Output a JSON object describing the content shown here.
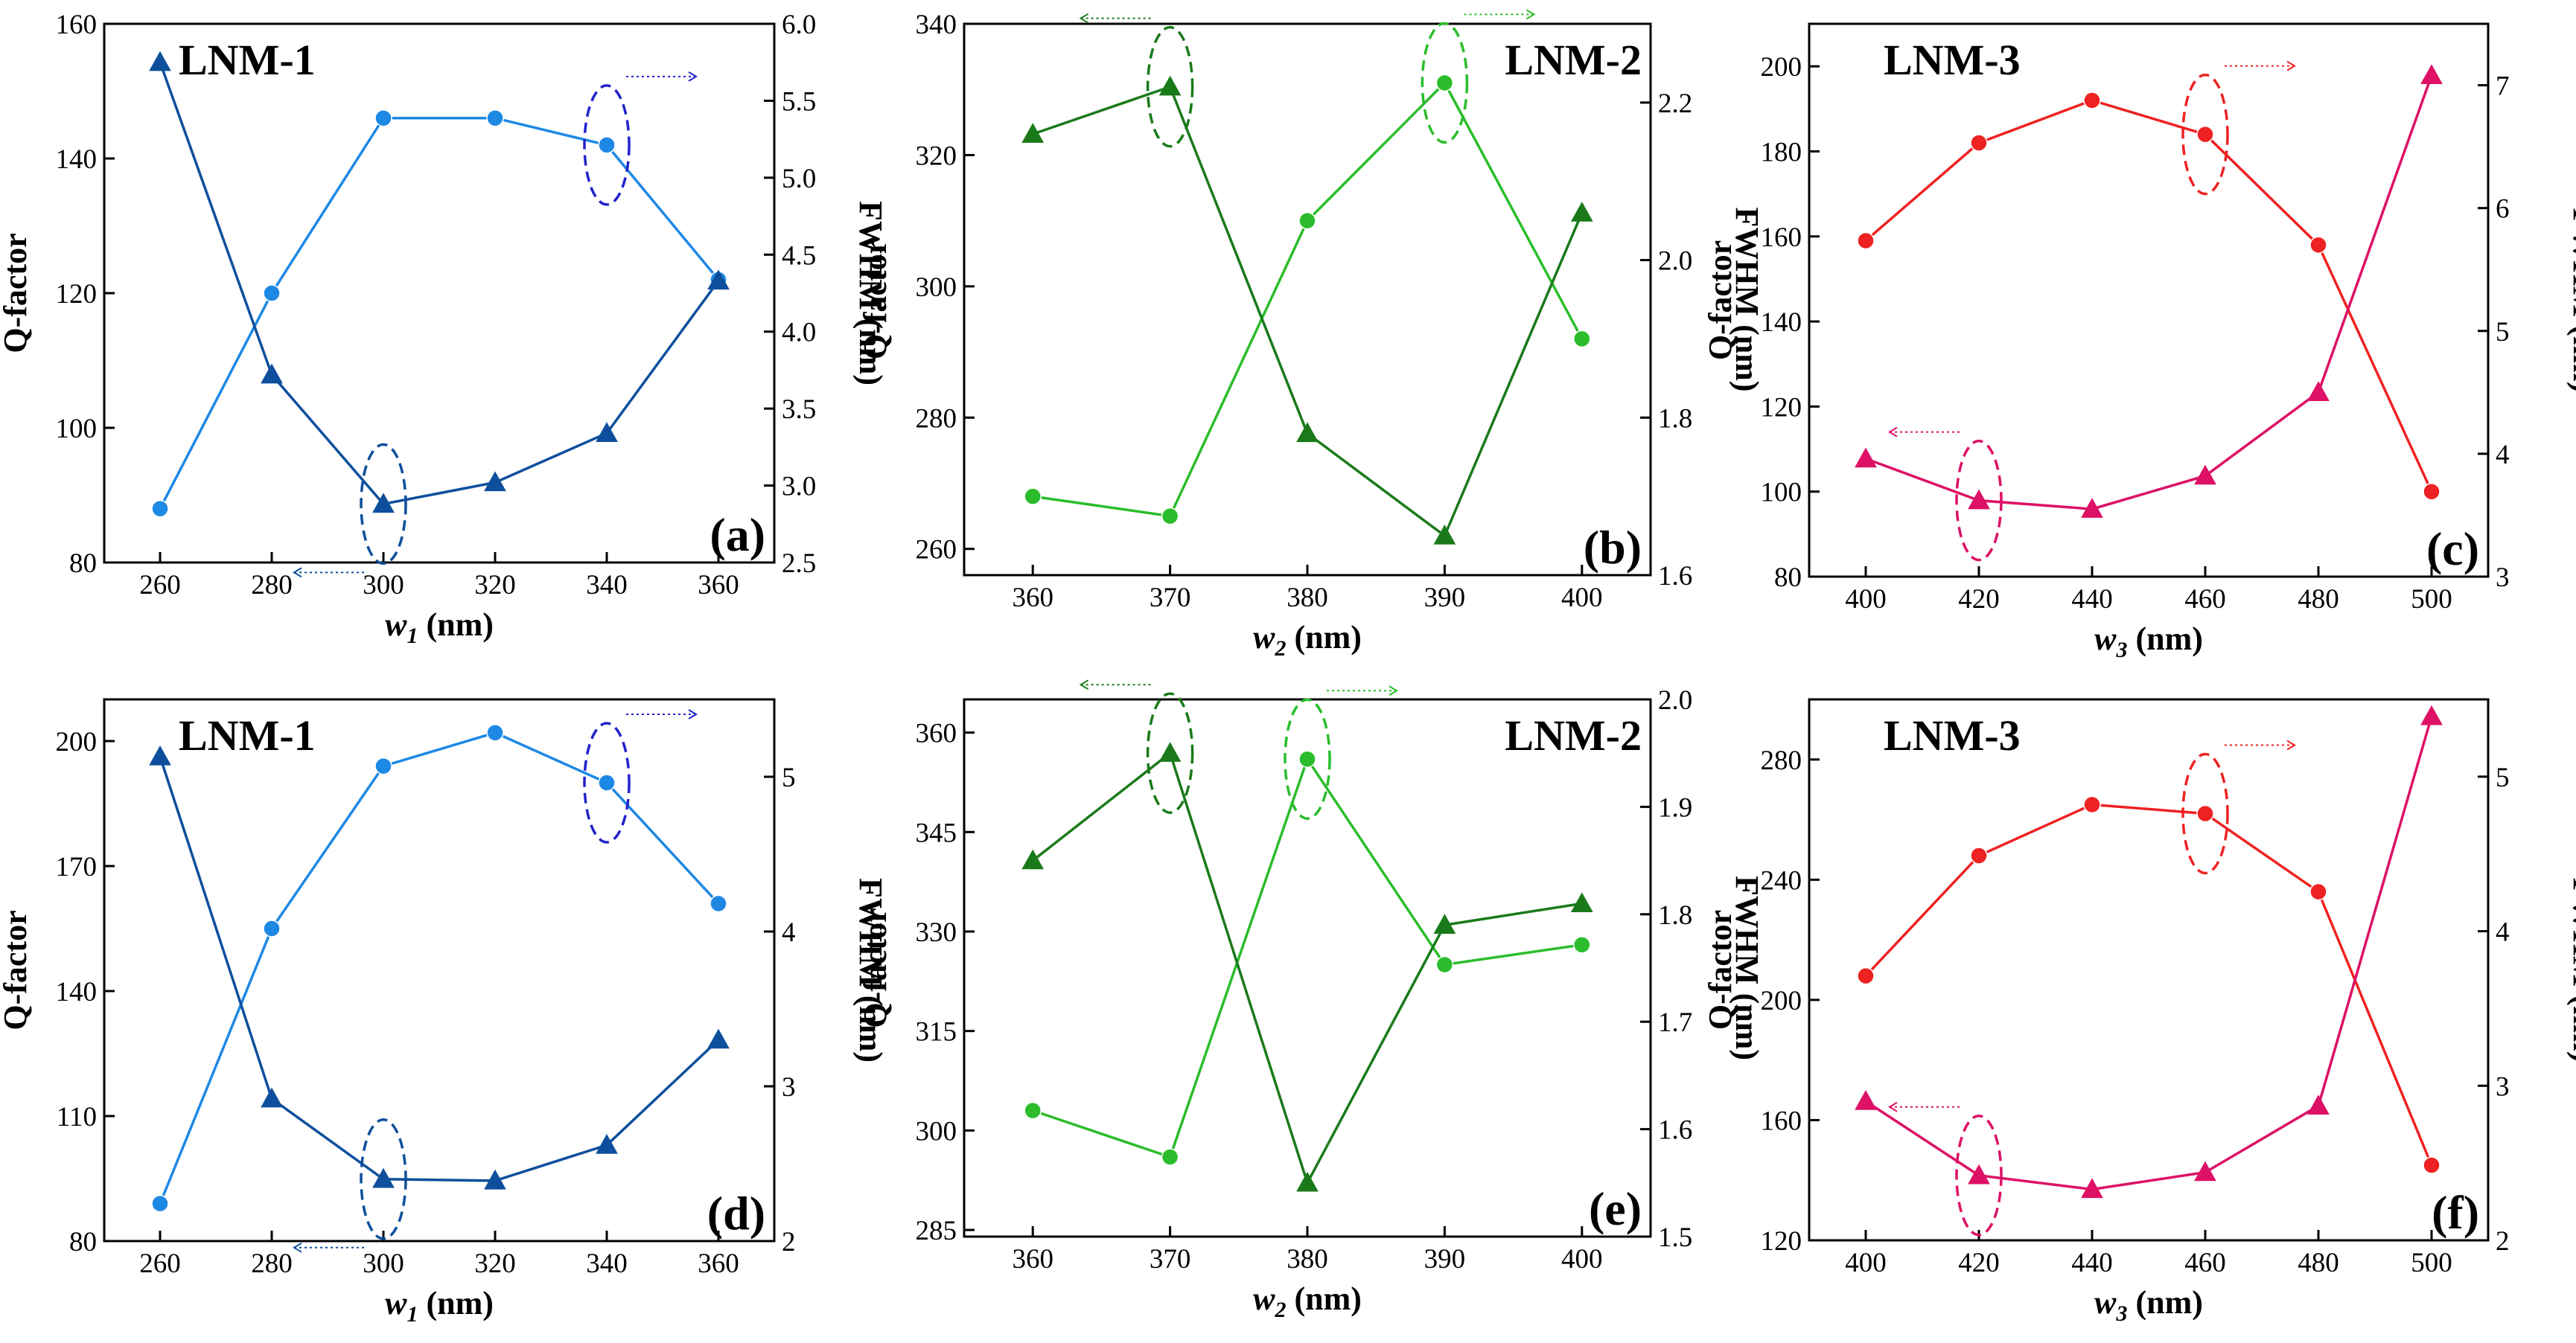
{
  "colors": {
    "blue_q": "#1e88e5",
    "blue_f": "#0d4f9c",
    "green_q": "#2bbd2b",
    "green_f": "#1a7a1a",
    "red_q": "#ee2222",
    "red_f": "#dd1166"
  },
  "chart_data": [
    {
      "type": "line",
      "panel": "(a)",
      "title": "LNM-1",
      "xlabel_var": "w",
      "xlabel_sub": "1",
      "xlabel_unit": " (nm)",
      "ylabel": "Q-factor",
      "y2label": "FWHM (nm)",
      "x": [
        260,
        280,
        300,
        320,
        340,
        360
      ],
      "xlim": [
        250,
        370
      ],
      "ylim": [
        80,
        160
      ],
      "y2lim": [
        2.5,
        6.0
      ],
      "xticks": [
        260,
        280,
        300,
        320,
        340,
        360
      ],
      "yticks": [
        80,
        100,
        120,
        140,
        160
      ],
      "y2ticks": [
        2.5,
        3.0,
        3.5,
        4.0,
        4.5,
        5.0,
        5.5,
        6.0
      ],
      "tick_dec2": 1,
      "color_q": "blue_q",
      "color_f": "blue_f",
      "series": [
        {
          "name": "Q-factor",
          "axis": "left",
          "marker": "circle",
          "values": [
            88,
            120,
            146,
            146,
            142,
            122
          ]
        },
        {
          "name": "FWHM",
          "axis": "right",
          "marker": "triangle",
          "values": [
            5.75,
            3.72,
            2.88,
            3.02,
            3.34,
            4.33
          ]
        }
      ],
      "annotations": [
        {
          "axis": "left",
          "x": 340,
          "y": 142,
          "arrow": "right"
        },
        {
          "axis": "right",
          "x": 300,
          "y": 2.88,
          "arrow": "left"
        }
      ]
    },
    {
      "type": "line",
      "panel": "(b)",
      "title": "LNM-2",
      "xlabel_var": "w",
      "xlabel_sub": "2",
      "xlabel_unit": " (nm)",
      "ylabel": "Q-factor",
      "y2label": "FWHM (nm)",
      "x": [
        360,
        370,
        380,
        390,
        400
      ],
      "xlim": [
        355,
        405
      ],
      "ylim": [
        256,
        340
      ],
      "y2lim": [
        1.6,
        2.3
      ],
      "xticks": [
        360,
        370,
        380,
        390,
        400
      ],
      "yticks": [
        260,
        280,
        300,
        320,
        340
      ],
      "y2ticks": [
        1.6,
        1.8,
        2.0,
        2.2
      ],
      "tick_dec2": 1,
      "color_q": "green_q",
      "color_f": "green_f",
      "series": [
        {
          "name": "Q-factor",
          "axis": "left",
          "marker": "circle",
          "values": [
            268,
            265,
            310,
            331,
            292
          ]
        },
        {
          "name": "FWHM",
          "axis": "right",
          "marker": "triangle",
          "values": [
            2.16,
            2.22,
            1.78,
            1.65,
            2.06
          ]
        }
      ],
      "annotations": [
        {
          "axis": "left",
          "x": 390,
          "y": 331,
          "arrow": "right"
        },
        {
          "axis": "right",
          "x": 370,
          "y": 2.22,
          "arrow": "left"
        }
      ]
    },
    {
      "type": "line",
      "panel": "(c)",
      "title": "LNM-3",
      "xlabel_var": "w",
      "xlabel_sub": "3",
      "xlabel_unit": " (nm)",
      "ylabel": "Q-factor",
      "y2label": "FWHM (nm)",
      "x": [
        400,
        420,
        440,
        460,
        480,
        500
      ],
      "xlim": [
        390,
        510
      ],
      "ylim": [
        80,
        210
      ],
      "y2lim": [
        3,
        7.5
      ],
      "xticks": [
        400,
        420,
        440,
        460,
        480,
        500
      ],
      "yticks": [
        80,
        100,
        120,
        140,
        160,
        180,
        200
      ],
      "y2ticks": [
        3,
        4,
        5,
        6,
        7
      ],
      "tick_dec2": 0,
      "color_q": "red_q",
      "color_f": "red_f",
      "series": [
        {
          "name": "Q-factor",
          "axis": "left",
          "marker": "circle",
          "values": [
            159,
            182,
            192,
            184,
            158,
            100
          ]
        },
        {
          "name": "FWHM",
          "axis": "right",
          "marker": "triangle",
          "values": [
            3.96,
            3.62,
            3.55,
            3.82,
            4.5,
            7.08
          ]
        }
      ],
      "annotations": [
        {
          "axis": "left",
          "x": 460,
          "y": 184,
          "arrow": "right"
        },
        {
          "axis": "right",
          "x": 420,
          "y": 3.62,
          "arrow": "left"
        }
      ]
    },
    {
      "type": "line",
      "panel": "(d)",
      "title": "LNM-1",
      "xlabel_var": "w",
      "xlabel_sub": "1",
      "xlabel_unit": " (nm)",
      "ylabel": "Q-factor",
      "y2label": "FWHM (nm)",
      "x": [
        260,
        280,
        300,
        320,
        340,
        360
      ],
      "xlim": [
        250,
        370
      ],
      "ylim": [
        80,
        210
      ],
      "y2lim": [
        2,
        5.5
      ],
      "xticks": [
        260,
        280,
        300,
        320,
        340,
        360
      ],
      "yticks": [
        80,
        110,
        140,
        170,
        200
      ],
      "y2ticks": [
        2,
        3,
        4,
        5
      ],
      "tick_dec2": 0,
      "color_q": "blue_q",
      "color_f": "blue_f",
      "series": [
        {
          "name": "Q-factor",
          "axis": "left",
          "marker": "circle",
          "values": [
            89,
            155,
            194,
            202,
            190,
            161
          ]
        },
        {
          "name": "FWHM",
          "axis": "right",
          "marker": "triangle",
          "values": [
            5.13,
            2.92,
            2.4,
            2.39,
            2.62,
            3.3
          ]
        }
      ],
      "annotations": [
        {
          "axis": "left",
          "x": 340,
          "y": 190,
          "arrow": "right"
        },
        {
          "axis": "right",
          "x": 300,
          "y": 2.4,
          "arrow": "left"
        }
      ]
    },
    {
      "type": "line",
      "panel": "(e)",
      "title": "LNM-2",
      "xlabel_var": "w",
      "xlabel_sub": "2",
      "xlabel_unit": " (nm)",
      "ylabel": "Q-factor",
      "y2label": "FWHM (nm)",
      "x": [
        360,
        370,
        380,
        390,
        400
      ],
      "xlim": [
        355,
        405
      ],
      "ylim": [
        284,
        365
      ],
      "y2lim": [
        1.5,
        2.0
      ],
      "xticks": [
        360,
        370,
        380,
        390,
        400
      ],
      "yticks": [
        285,
        300,
        315,
        330,
        345,
        360
      ],
      "y2ticks": [
        1.5,
        1.6,
        1.7,
        1.8,
        1.9,
        2.0
      ],
      "tick_dec2": 1,
      "color_q": "green_q",
      "color_f": "green_f",
      "series": [
        {
          "name": "Q-factor",
          "axis": "left",
          "marker": "circle",
          "values": [
            303,
            296,
            356,
            325,
            328
          ]
        },
        {
          "name": "FWHM",
          "axis": "right",
          "marker": "triangle",
          "values": [
            1.85,
            1.95,
            1.55,
            1.79,
            1.81
          ]
        }
      ],
      "annotations": [
        {
          "axis": "left",
          "x": 380,
          "y": 356,
          "arrow": "right"
        },
        {
          "axis": "right",
          "x": 370,
          "y": 1.95,
          "arrow": "left"
        }
      ]
    },
    {
      "type": "line",
      "panel": "(f)",
      "title": "LNM-3",
      "xlabel_var": "w",
      "xlabel_sub": "3",
      "xlabel_unit": " (nm)",
      "ylabel": "Q-factor",
      "y2label": "FWHM (nm)",
      "x": [
        400,
        420,
        440,
        460,
        480,
        500
      ],
      "xlim": [
        390,
        510
      ],
      "ylim": [
        120,
        300
      ],
      "y2lim": [
        2,
        5.5
      ],
      "xticks": [
        400,
        420,
        440,
        460,
        480,
        500
      ],
      "yticks": [
        120,
        160,
        200,
        240,
        280
      ],
      "y2ticks": [
        2,
        3,
        4,
        5
      ],
      "tick_dec2": 0,
      "color_q": "red_q",
      "color_f": "red_f",
      "series": [
        {
          "name": "Q-factor",
          "axis": "left",
          "marker": "circle",
          "values": [
            208,
            248,
            265,
            262,
            236,
            145
          ]
        },
        {
          "name": "FWHM",
          "axis": "right",
          "marker": "triangle",
          "values": [
            2.9,
            2.42,
            2.33,
            2.44,
            2.87,
            5.39
          ]
        }
      ],
      "annotations": [
        {
          "axis": "left",
          "x": 460,
          "y": 262,
          "arrow": "right"
        },
        {
          "axis": "right",
          "x": 420,
          "y": 2.42,
          "arrow": "left"
        }
      ]
    }
  ]
}
